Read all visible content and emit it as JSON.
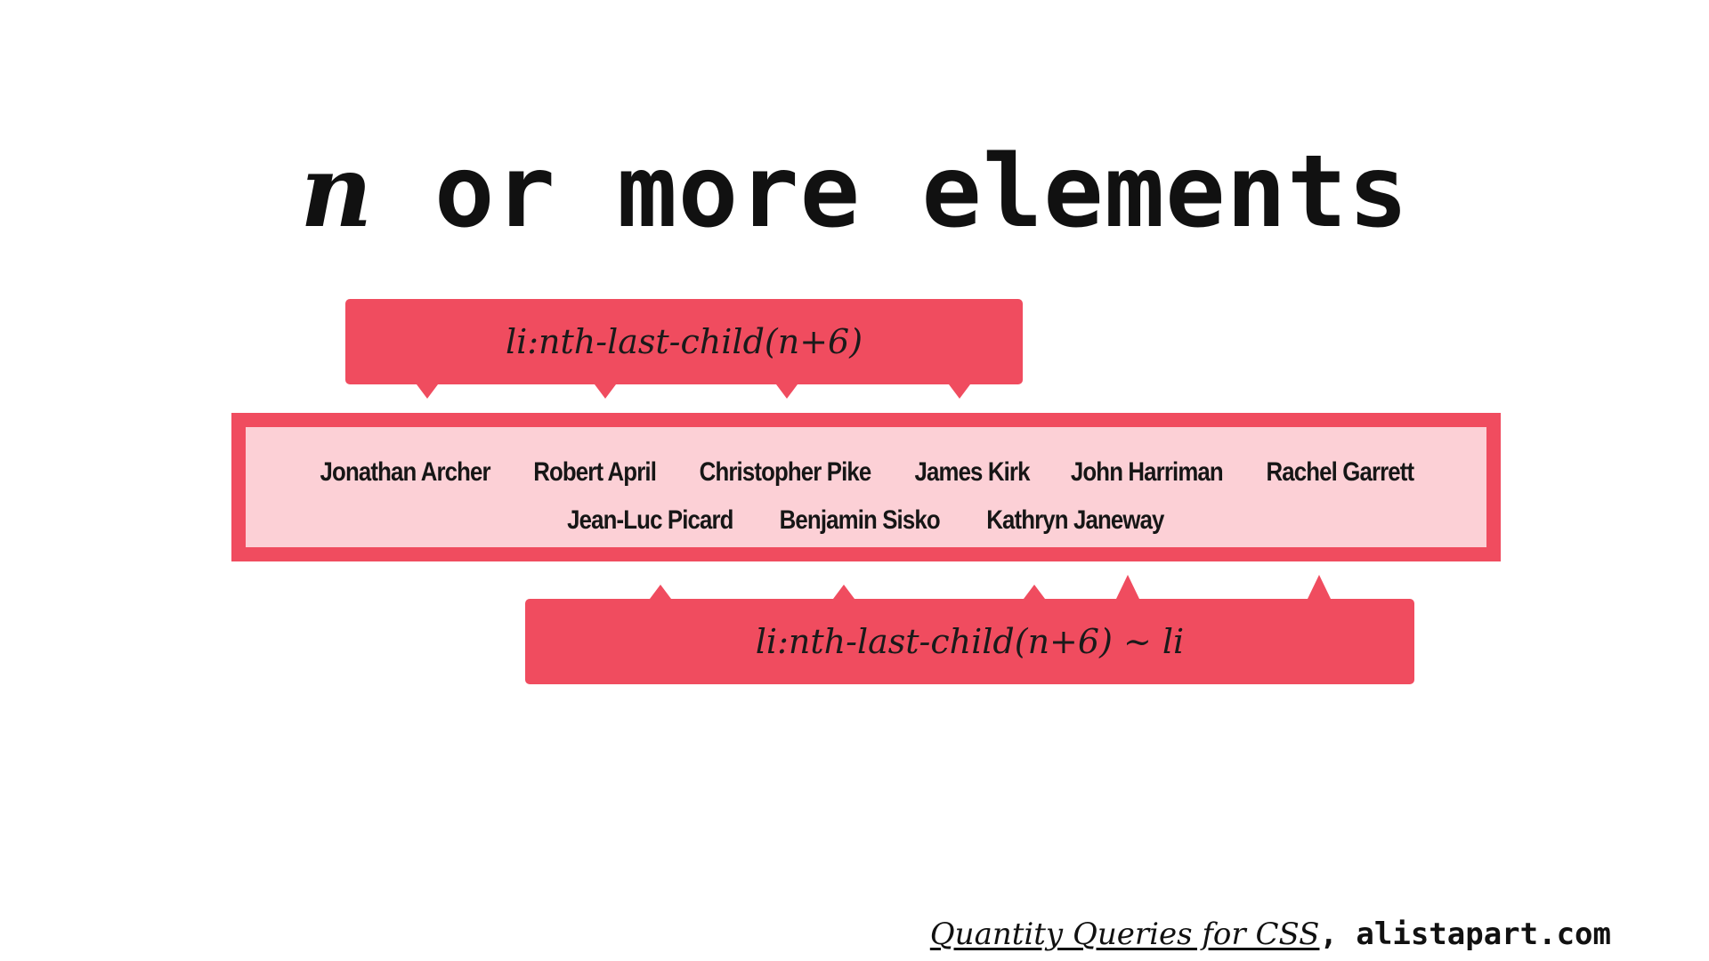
{
  "title": {
    "variable": "n",
    "rest": " or more elements"
  },
  "callouts": {
    "top_selector": "li:nth-last-child(n+6)",
    "bottom_selector": "li:nth-last-child(n+6) ~ li"
  },
  "list": {
    "row1": [
      "Jonathan Archer",
      "Robert April",
      "Christopher Pike",
      "James Kirk",
      "John Harriman",
      "Rachel Garrett"
    ],
    "row2": [
      "Jean-Luc Picard",
      "Benjamin Sisko",
      "Kathryn Janeway"
    ]
  },
  "footer": {
    "source_title": "Quantity Queries for CSS",
    "separator": ", ",
    "source_site": "alistapart.com"
  },
  "colors": {
    "accent": "#f04c5f",
    "list_background": "#fcd0d6",
    "text": "#111111"
  }
}
